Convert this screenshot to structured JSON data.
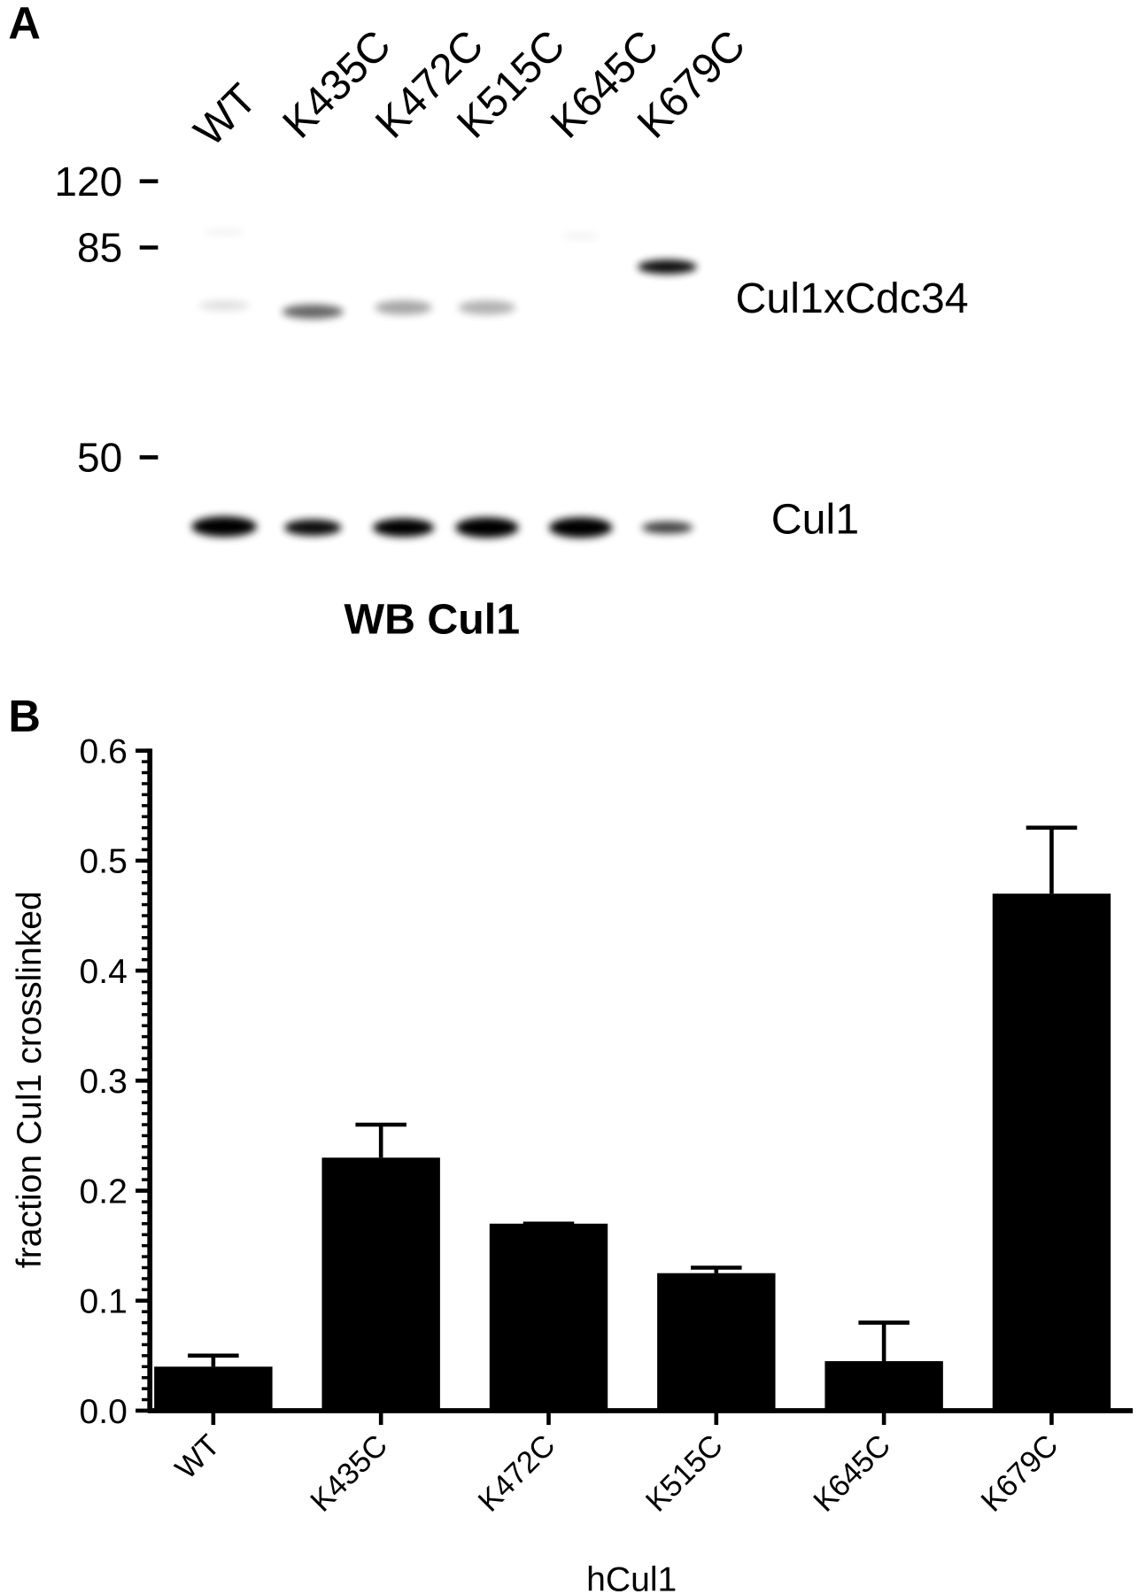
{
  "panel_a": {
    "label": "A",
    "lanes": [
      "WT",
      "K435C",
      "K472C",
      "K515C",
      "K645C",
      "K679C"
    ],
    "markers": [
      120,
      85,
      50
    ],
    "band_labels": [
      "Cul1xCdc34",
      "Cul1"
    ],
    "caption": "WB Cul1"
  },
  "panel_b": {
    "label": "B"
  },
  "chart_data": {
    "type": "bar",
    "x_label": "hCul1",
    "y_label": "fraction Cul1 crosslinked",
    "categories": [
      "WT",
      "K435C",
      "K472C",
      "K515C",
      "K645C",
      "K679C"
    ],
    "values": [
      0.04,
      0.23,
      0.17,
      0.125,
      0.045,
      0.47
    ],
    "errors": [
      0.01,
      0.03,
      0,
      0.005,
      0.035,
      0.06
    ],
    "color": "#000000",
    "ylim": [
      0,
      0.6
    ],
    "yticks": [
      {
        "value": 0,
        "label": "0.0"
      },
      0.1,
      0.2,
      0.3,
      0.4,
      0.5,
      0.6
    ],
    "yticks_minor": [
      0.01,
      0.02,
      0.03,
      0.04,
      0.05,
      0.06,
      0.07,
      0.08,
      0.09,
      0.11,
      0.12,
      0.13,
      0.14,
      0.15,
      0.16,
      0.17,
      0.18,
      0.19,
      0.21,
      0.22,
      0.23,
      0.24,
      0.25,
      0.26,
      0.27,
      0.28,
      0.29,
      0.31,
      0.32,
      0.33,
      0.34,
      0.35,
      0.36,
      0.37,
      0.38,
      0.39,
      0.41,
      0.42,
      0.43,
      0.44,
      0.45,
      0.46,
      0.47,
      0.48,
      0.49,
      0.51,
      0.52,
      0.53,
      0.54,
      0.55,
      0.56,
      0.57,
      0.58,
      0.59
    ],
    "grid": false
  }
}
